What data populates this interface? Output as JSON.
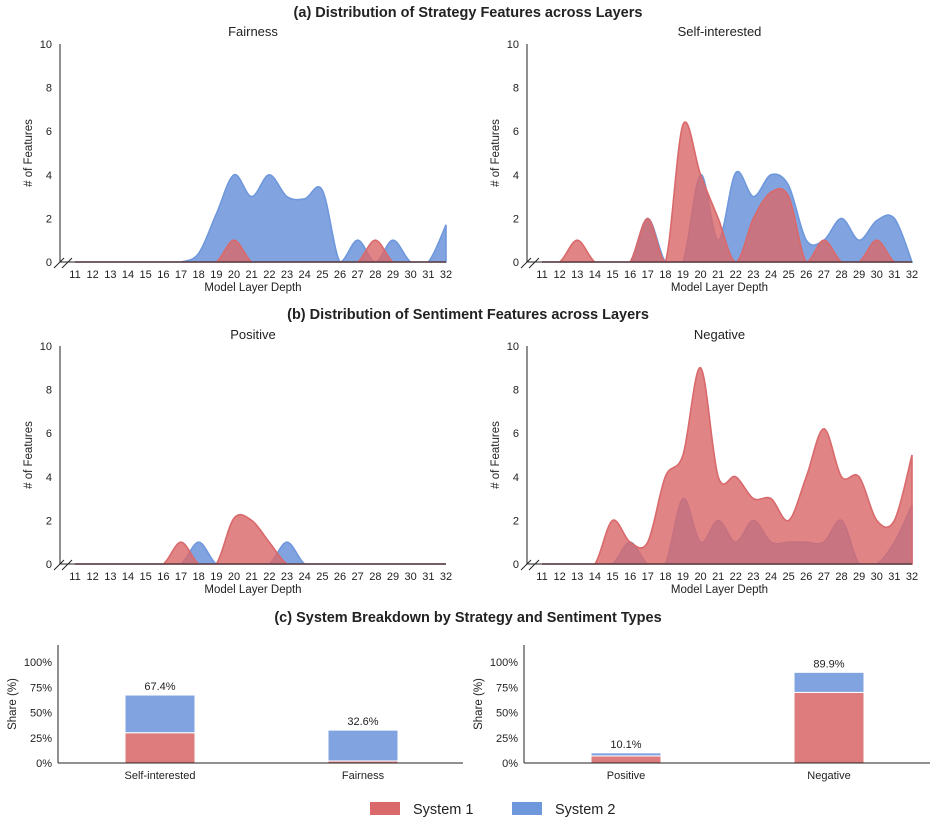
{
  "colors": {
    "system1": "#d9696b",
    "system2": "#6f97dc"
  },
  "legend": {
    "system1": "System 1",
    "system2": "System 2"
  },
  "section_titles": {
    "a": "(a) Distribution of Strategy Features across Layers",
    "b": "(b) Distribution of Sentiment Features across Layers",
    "c": "(c) System Breakdown by Strategy and Sentiment Types"
  },
  "chart_data": [
    {
      "id": "fairness",
      "type": "area",
      "title": "Fairness",
      "xlabel": "Model Layer Depth",
      "ylabel": "# of Features",
      "x": [
        11,
        12,
        13,
        14,
        15,
        16,
        17,
        18,
        19,
        20,
        21,
        22,
        23,
        24,
        25,
        26,
        27,
        28,
        29,
        30,
        31,
        32
      ],
      "ylim": [
        0,
        10
      ],
      "yticks": [
        0,
        2,
        4,
        6,
        8,
        10
      ],
      "series": [
        {
          "name": "System 1",
          "values": [
            0,
            0,
            0,
            0,
            0,
            0,
            0,
            0,
            0,
            1,
            0,
            0,
            0,
            0,
            0,
            0,
            0,
            1,
            0,
            0,
            0,
            0
          ]
        },
        {
          "name": "System 2",
          "values": [
            0,
            0,
            0,
            0,
            0,
            0,
            0,
            0.4,
            2.2,
            4,
            3,
            4,
            3,
            2.9,
            3.3,
            0,
            1,
            0,
            1,
            0,
            0,
            1.7
          ]
        }
      ]
    },
    {
      "id": "self-interested",
      "type": "area",
      "title": "Self-interested",
      "xlabel": "Model Layer Depth",
      "ylabel": "# of Features",
      "x": [
        11,
        12,
        13,
        14,
        15,
        16,
        17,
        18,
        19,
        20,
        21,
        22,
        23,
        24,
        25,
        26,
        27,
        28,
        29,
        30,
        31,
        32
      ],
      "ylim": [
        0,
        10
      ],
      "yticks": [
        0,
        2,
        4,
        6,
        8,
        10
      ],
      "series": [
        {
          "name": "System 1",
          "values": [
            0,
            0,
            1,
            0,
            0,
            0,
            2,
            0,
            6.3,
            4,
            2,
            0,
            2,
            3.2,
            3,
            0,
            1,
            0,
            0,
            1,
            0,
            0
          ]
        },
        {
          "name": "System 2",
          "values": [
            0,
            0,
            0,
            0,
            0,
            0,
            2,
            0,
            0,
            4,
            1,
            4.1,
            3,
            4,
            3.5,
            1,
            1,
            2,
            1,
            1.9,
            2,
            0
          ]
        }
      ]
    },
    {
      "id": "positive",
      "type": "area",
      "title": "Positive",
      "xlabel": "Model Layer Depth",
      "ylabel": "# of Features",
      "x": [
        11,
        12,
        13,
        14,
        15,
        16,
        17,
        18,
        19,
        20,
        21,
        22,
        23,
        24,
        25,
        26,
        27,
        28,
        29,
        30,
        31,
        32
      ],
      "ylim": [
        0,
        10
      ],
      "yticks": [
        0,
        2,
        4,
        6,
        8,
        10
      ],
      "series": [
        {
          "name": "System 1",
          "values": [
            0,
            0,
            0,
            0,
            0,
            0,
            1,
            0,
            0,
            2.1,
            2,
            1,
            0,
            0,
            0,
            0,
            0,
            0,
            0,
            0,
            0,
            0
          ]
        },
        {
          "name": "System 2",
          "values": [
            0,
            0,
            0,
            0,
            0,
            0,
            0,
            1,
            0,
            0,
            0,
            0,
            1,
            0,
            0,
            0,
            0,
            0,
            0,
            0,
            0,
            0
          ]
        }
      ]
    },
    {
      "id": "negative",
      "type": "area",
      "title": "Negative",
      "xlabel": "Model Layer Depth",
      "ylabel": "# of Features",
      "x": [
        11,
        12,
        13,
        14,
        15,
        16,
        17,
        18,
        19,
        20,
        21,
        22,
        23,
        24,
        25,
        26,
        27,
        28,
        29,
        30,
        31,
        32
      ],
      "ylim": [
        0,
        10
      ],
      "yticks": [
        0,
        2,
        4,
        6,
        8,
        10
      ],
      "series": [
        {
          "name": "System 1",
          "values": [
            0,
            0,
            0,
            0,
            2,
            1,
            1,
            4,
            5,
            9,
            4,
            4,
            3,
            3,
            2,
            4,
            6.2,
            4,
            4,
            2,
            2,
            5
          ]
        },
        {
          "name": "System 2",
          "values": [
            0,
            0,
            0,
            0,
            0,
            1,
            0,
            0,
            3,
            1,
            2,
            1,
            2,
            1,
            1,
            1,
            1,
            2,
            0,
            0,
            1,
            2.7
          ]
        }
      ]
    },
    {
      "id": "strategy-share",
      "type": "bar",
      "stacked": true,
      "categories": [
        "Self-interested",
        "Fairness"
      ],
      "ylabel": "Share (%)",
      "ylim": [
        0,
        117
      ],
      "yticks": [
        "0%",
        "25%",
        "50%",
        "75%",
        "100%"
      ],
      "series": [
        {
          "name": "System 1",
          "values": [
            30,
            2
          ]
        },
        {
          "name": "System 2",
          "values": [
            37.4,
            30.6
          ]
        }
      ],
      "totals": [
        "67.4%",
        "32.6%"
      ]
    },
    {
      "id": "sentiment-share",
      "type": "bar",
      "stacked": true,
      "categories": [
        "Positive",
        "Negative"
      ],
      "ylabel": "Share (%)",
      "ylim": [
        0,
        117
      ],
      "yticks": [
        "0%",
        "25%",
        "50%",
        "75%",
        "100%"
      ],
      "series": [
        {
          "name": "System 1",
          "values": [
            7,
            70
          ]
        },
        {
          "name": "System 2",
          "values": [
            3.1,
            19.9
          ]
        }
      ],
      "totals": [
        "10.1%",
        "89.9%"
      ]
    }
  ]
}
